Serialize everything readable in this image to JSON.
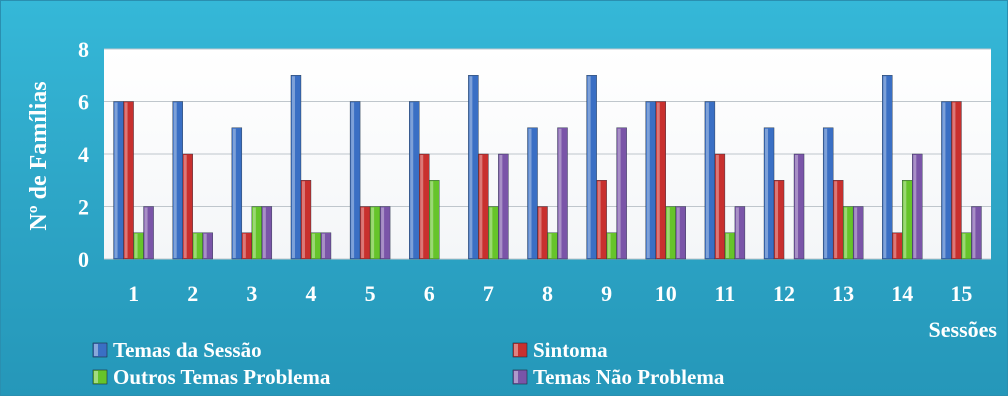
{
  "chart_data": {
    "type": "bar",
    "title": "",
    "xlabel": "Sessões",
    "ylabel": "Nº de Famílias",
    "ylim": [
      0,
      8
    ],
    "yticks": [
      "0",
      "2",
      "4",
      "6",
      "8"
    ],
    "grid": true,
    "legend_position": "bottom",
    "categories": [
      "1",
      "2",
      "3",
      "4",
      "5",
      "6",
      "7",
      "8",
      "9",
      "10",
      "11",
      "12",
      "13",
      "14",
      "15"
    ],
    "series": [
      {
        "name": "Temas da Sessão",
        "color": "#3a6fc4",
        "values": [
          6,
          6,
          5,
          7,
          6,
          6,
          7,
          5,
          7,
          6,
          6,
          5,
          5,
          7,
          6
        ]
      },
      {
        "name": "Sintoma",
        "color": "#c8302e",
        "values": [
          6,
          4,
          1,
          3,
          2,
          4,
          4,
          2,
          3,
          6,
          4,
          3,
          3,
          1,
          6
        ]
      },
      {
        "name": "Outros Temas Problema",
        "color": "#66c42a",
        "values": [
          1,
          1,
          2,
          1,
          2,
          3,
          2,
          1,
          1,
          2,
          1,
          0,
          2,
          3,
          1
        ]
      },
      {
        "name": "Temas Não Problema",
        "color": "#7a55a8",
        "values": [
          2,
          1,
          2,
          1,
          2,
          0,
          4,
          5,
          5,
          2,
          2,
          4,
          2,
          4,
          2
        ]
      }
    ]
  }
}
